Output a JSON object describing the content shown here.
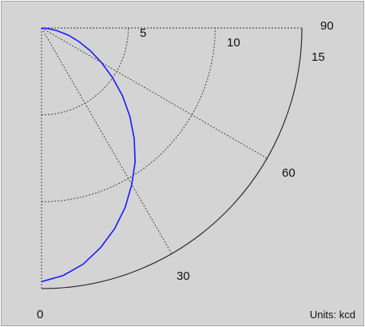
{
  "chart_data": {
    "type": "polar",
    "subtype": "luminous-intensity-quarter-polar",
    "angle_unit": "degrees",
    "angle_range": [
      0,
      90
    ],
    "angle_labels": [
      "0",
      "30",
      "60",
      "90"
    ],
    "radius_range": [
      0,
      15
    ],
    "radius_labels": [
      "5",
      "10",
      "15"
    ],
    "units_label": "Units: kcd",
    "grid": true,
    "series": [
      {
        "angles": [
          0,
          5,
          10,
          15,
          20,
          25,
          30,
          35,
          40,
          45,
          50,
          55,
          60,
          65,
          70,
          75,
          80,
          85,
          90
        ],
        "radii": [
          14.6,
          14.3,
          13.8,
          13.1,
          12.3,
          11.4,
          10.4,
          9.4,
          8.3,
          7.2,
          6.1,
          5.0,
          4.0,
          3.1,
          2.3,
          1.6,
          0.9,
          0.4,
          0.0
        ],
        "color": "#1a1aff"
      }
    ],
    "colors": {
      "background": "#d4d4d4",
      "grid": "#333333",
      "curve": "#1a1aff",
      "outer_arc": "#222222"
    }
  }
}
